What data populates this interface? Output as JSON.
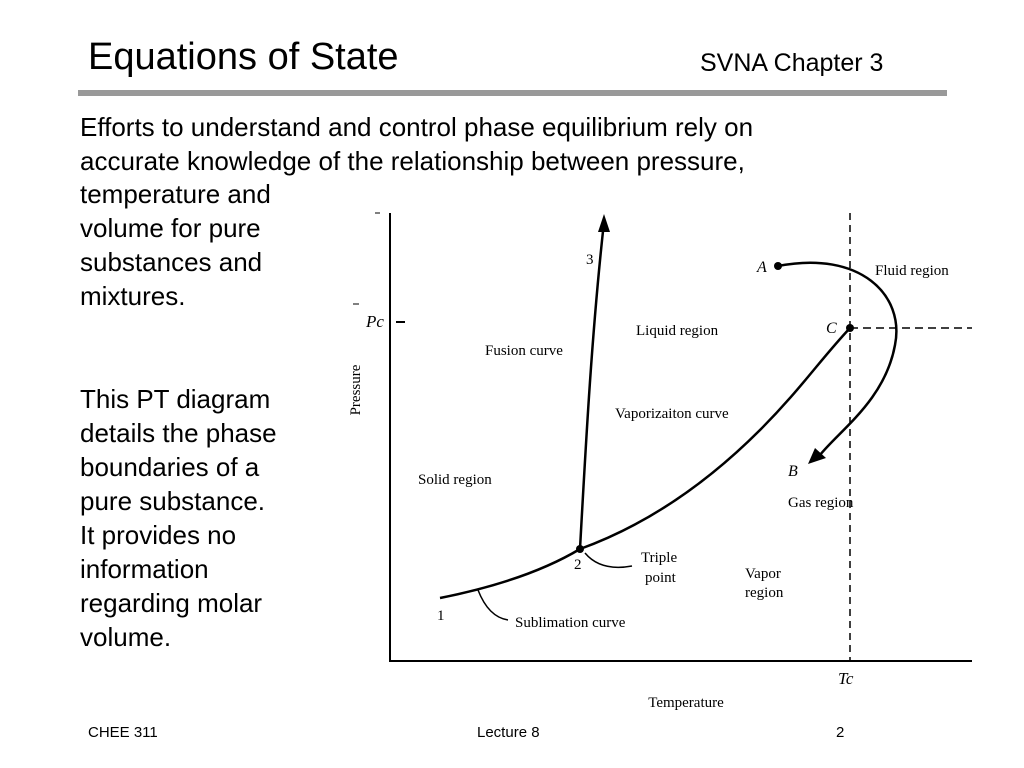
{
  "header": {
    "title": "Equations of State",
    "subtitle": "SVNA Chapter 3"
  },
  "body": {
    "paragraph1": [
      "Efforts to understand and control phase equilibrium rely on",
      "accurate knowledge of the relationship between pressure,",
      "temperature and",
      "volume for pure",
      "substances and",
      "mixtures."
    ],
    "paragraph2": [
      "This PT diagram",
      "details the phase",
      "boundaries of a",
      "pure substance.",
      "It provides no",
      "information",
      "regarding molar",
      "volume."
    ]
  },
  "diagram": {
    "y_axis_label": "Pressure",
    "x_axis_label": "Temperature",
    "pc_label": "Pc",
    "tc_label": "Tc",
    "regions": {
      "solid": "Solid region",
      "liquid": "Liquid region",
      "fluid": "Fluid region",
      "gas": "Gas region",
      "vapor_line1": "Vapor",
      "vapor_line2": "region"
    },
    "curves": {
      "fusion": "Fusion curve",
      "vaporization": "Vaporizaiton curve",
      "sublimation": "Sublimation curve"
    },
    "triple_point_line1": "Triple",
    "triple_point_line2": "point",
    "points": {
      "p1": "1",
      "p2": "2",
      "p3": "3",
      "A": "A",
      "B": "B",
      "C": "C"
    }
  },
  "footer": {
    "course": "CHEE 311",
    "lecture": "Lecture 8",
    "page": "2"
  }
}
